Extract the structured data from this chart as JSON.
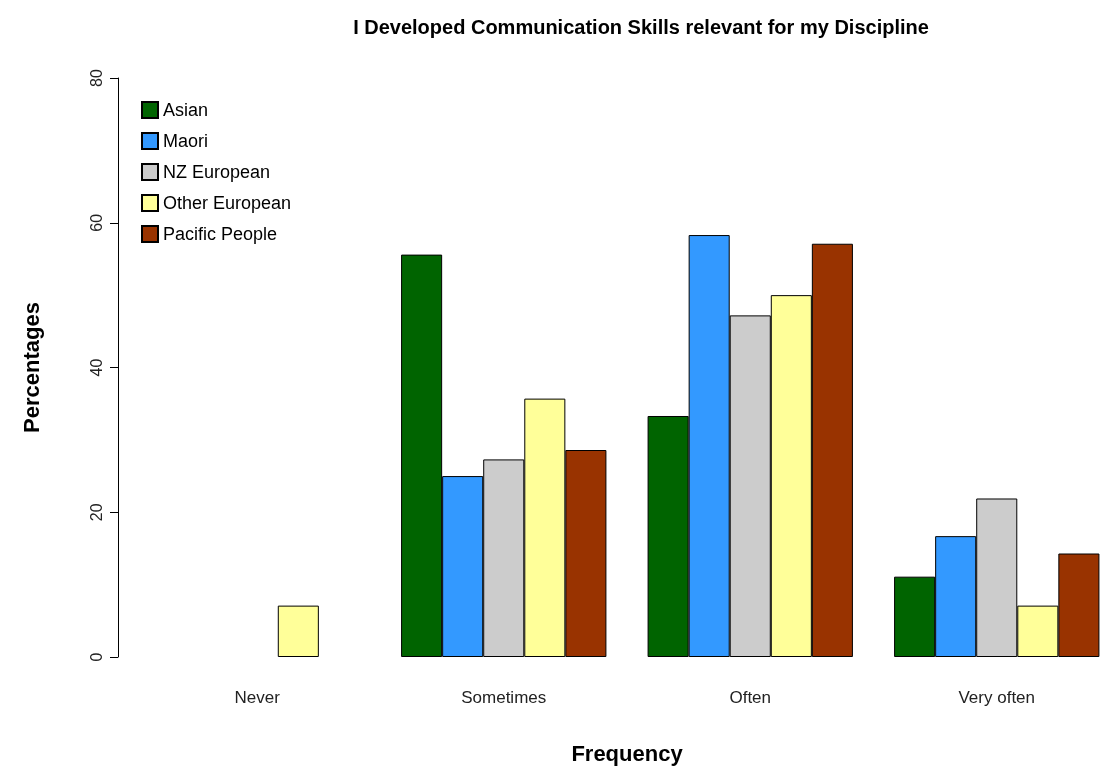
{
  "chart_data": {
    "type": "bar",
    "title": "I Developed Communication Skills relevant for my Discipline",
    "xlabel": "Frequency",
    "ylabel": "Percentages",
    "categories": [
      "Never",
      "Sometimes",
      "Often",
      "Very often"
    ],
    "series": [
      {
        "name": "Asian",
        "color": "#006400",
        "values": [
          0,
          55.6,
          33.3,
          11.1
        ]
      },
      {
        "name": "Maori",
        "color": "#3399ff",
        "values": [
          0,
          25.0,
          58.3,
          16.7
        ]
      },
      {
        "name": "NZ European",
        "color": "#cccccc",
        "values": [
          0,
          27.3,
          47.2,
          21.9
        ]
      },
      {
        "name": "Other European",
        "color": "#ffff99",
        "values": [
          7.1,
          35.7,
          50.0,
          7.1
        ]
      },
      {
        "name": "Pacific People",
        "color": "#993300",
        "values": [
          0,
          28.6,
          57.1,
          14.3
        ]
      }
    ],
    "ylim": [
      0,
      80
    ],
    "yticks": [
      0,
      20,
      40,
      60,
      80
    ],
    "grid": false,
    "legend": "top left"
  }
}
